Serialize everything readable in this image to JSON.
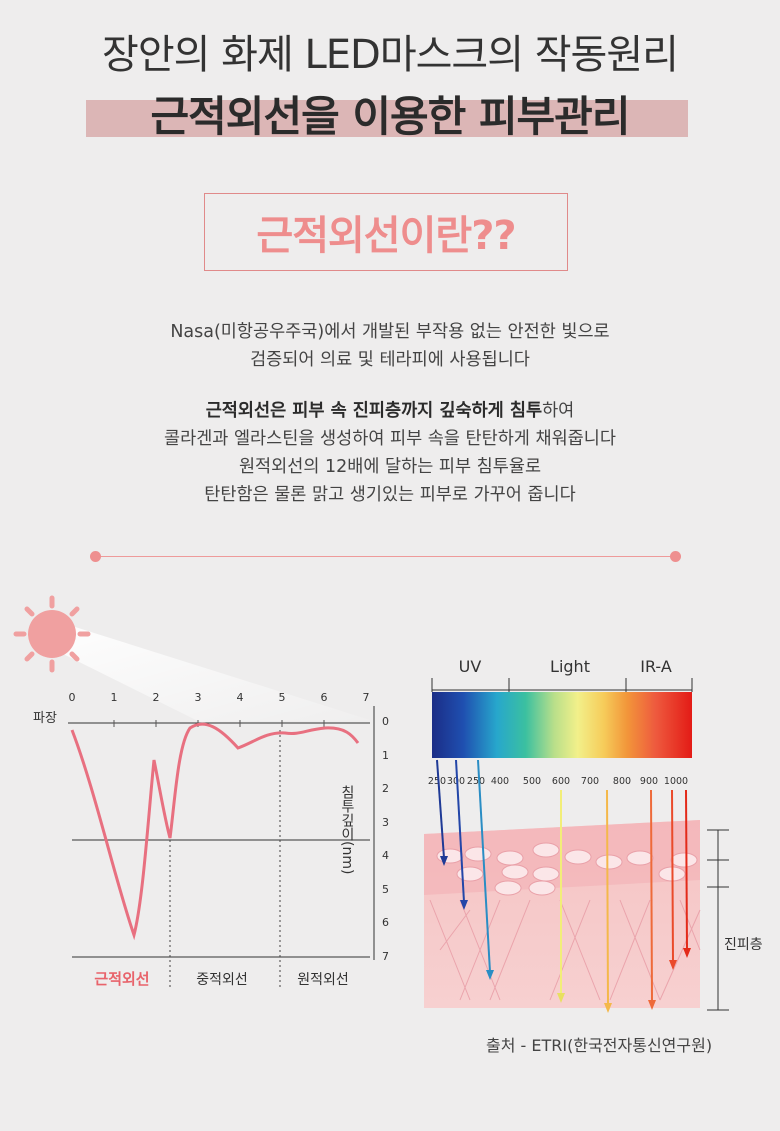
{
  "header": {
    "title_line1": "장안의 화제 LED마스크의 작동원리",
    "title_line2": "근적외선을 이용한 피부관리"
  },
  "section": {
    "heading": "근적외선이란??"
  },
  "intro": {
    "line1": "Nasa(미항공우주국)에서 개발된 부작용 없는 안전한 빛으로",
    "line2": "검증되어 의료 및 테라피에 사용됩니다"
  },
  "body": {
    "line1_bold": "근적외선은 피부 속 진피층까지 깊숙하게 침투",
    "line1_rest": "하여",
    "line2": "콜라겐과 엘라스틴을 생성하여 피부 속을 탄탄하게 채워줍니다",
    "line3": "원적외선의 12배에 달하는 피부 침투율로",
    "line4": "탄탄함은 물론 맑고 생기있는 피부로 가꾸어 줍니다"
  },
  "left_chart": {
    "x_axis_name": "파장",
    "x_ticks": [
      "0",
      "1",
      "2",
      "3",
      "4",
      "5",
      "6",
      "7"
    ],
    "y_axis_name": "침투깊이(nm)",
    "y_ticks": [
      "0",
      "1",
      "2",
      "3",
      "4",
      "5",
      "6",
      "7"
    ],
    "zones": [
      "근적외선",
      "중적외선",
      "원적외선"
    ],
    "zone_highlight_color": "#e8636b",
    "curve_color": "#e87080"
  },
  "spectrum": {
    "bands": [
      "UV",
      "Light",
      "IR-A"
    ],
    "wavelengths": [
      "250",
      "300",
      "250",
      "400",
      "500",
      "600",
      "700",
      "800",
      "900",
      "1000"
    ],
    "layer_label": "진피층"
  },
  "source": "출처 - ETRI(한국전자통신연구원)"
}
